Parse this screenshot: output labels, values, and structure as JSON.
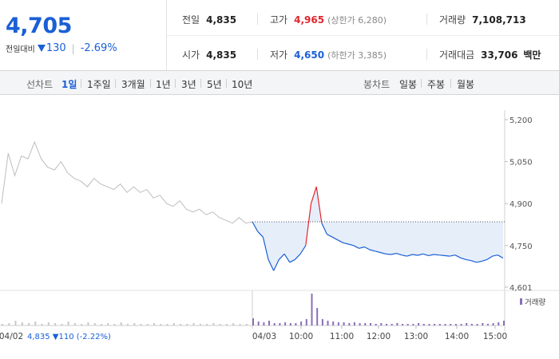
{
  "price": {
    "current": "4,705",
    "change_label": "전일대비",
    "change_value": "130",
    "change_pct": "-2.69%"
  },
  "stats": {
    "prev": {
      "label": "전일",
      "value": "4,835"
    },
    "high": {
      "label": "고가",
      "value": "4,965",
      "limit": "(상한가 6,280)"
    },
    "volume": {
      "label": "거래량",
      "value": "7,108,713"
    },
    "open": {
      "label": "시가",
      "value": "4,835"
    },
    "low": {
      "label": "저가",
      "value": "4,650",
      "limit": "(하한가 3,385)"
    },
    "amount": {
      "label": "거래대금",
      "value": "33,706",
      "unit": "백만"
    }
  },
  "tabs": {
    "line_title": "선차트",
    "line_tabs": [
      "1일",
      "1주일",
      "3개월",
      "1년",
      "3년",
      "5년",
      "10년"
    ],
    "active_tab": "1일",
    "candle_title": "봉차트",
    "candle_tabs": [
      "일봉",
      "주봉",
      "월봉"
    ]
  },
  "colors": {
    "up": "#e0262d",
    "down": "#1a5fd6",
    "prev_day_line": "#bdbdbd",
    "area_fill": "#e6eefa",
    "volume_prev": "#c8c8c8",
    "volume_today": "#8a6fb5"
  },
  "chart_data": {
    "type": "line",
    "y_ticks": [
      "5,200",
      "5,050",
      "4,900",
      "4,750",
      "4,601"
    ],
    "ylim": [
      4601,
      5200
    ],
    "reference_price": 4835,
    "x_labels": [
      "04/02",
      "04/03",
      "10:00",
      "11:00",
      "12:00",
      "13:00",
      "14:00",
      "15:00"
    ],
    "volume_legend": "거래량",
    "prev_day_footer": {
      "date": "04/02",
      "close": "4,835",
      "change": "110",
      "pct": "(-2.22%)"
    },
    "series": [
      {
        "date": "04/02",
        "values": [
          4900,
          5080,
          5000,
          5070,
          5060,
          5120,
          5060,
          5030,
          5020,
          5050,
          5010,
          4990,
          4980,
          4960,
          4990,
          4970,
          4960,
          4950,
          4970,
          4940,
          4960,
          4940,
          4950,
          4920,
          4930,
          4900,
          4890,
          4910,
          4880,
          4870,
          4880,
          4860,
          4870,
          4850,
          4840,
          4830,
          4850,
          4830,
          4835
        ]
      },
      {
        "date": "04/03",
        "values": [
          4835,
          4800,
          4780,
          4700,
          4660,
          4700,
          4720,
          4690,
          4700,
          4720,
          4750,
          4900,
          4960,
          4830,
          4790,
          4780,
          4770,
          4760,
          4755,
          4750,
          4740,
          4745,
          4735,
          4730,
          4725,
          4720,
          4718,
          4722,
          4716,
          4712,
          4718,
          4715,
          4720,
          4714,
          4718,
          4716,
          4714,
          4712,
          4716,
          4706,
          4700,
          4696,
          4690,
          4694,
          4700,
          4712,
          4716,
          4705
        ]
      }
    ],
    "volume": {
      "prev": [
        2,
        3,
        6,
        4,
        3,
        5,
        2,
        4,
        3,
        2,
        5,
        3,
        2,
        4,
        3,
        2,
        3,
        2,
        4,
        2,
        3,
        2,
        2,
        3,
        2,
        2,
        3,
        2,
        2,
        3,
        2,
        2,
        3,
        2,
        2,
        3,
        2,
        2,
        4
      ],
      "today": [
        9,
        5,
        4,
        6,
        3,
        3,
        4,
        3,
        3,
        5,
        8,
        40,
        22,
        8,
        6,
        5,
        4,
        4,
        3,
        4,
        3,
        3,
        3,
        2,
        3,
        2,
        2,
        3,
        2,
        2,
        2,
        3,
        2,
        2,
        2,
        2,
        2,
        2,
        2,
        2,
        3,
        2,
        2,
        3,
        2,
        3,
        4,
        6
      ]
    }
  }
}
